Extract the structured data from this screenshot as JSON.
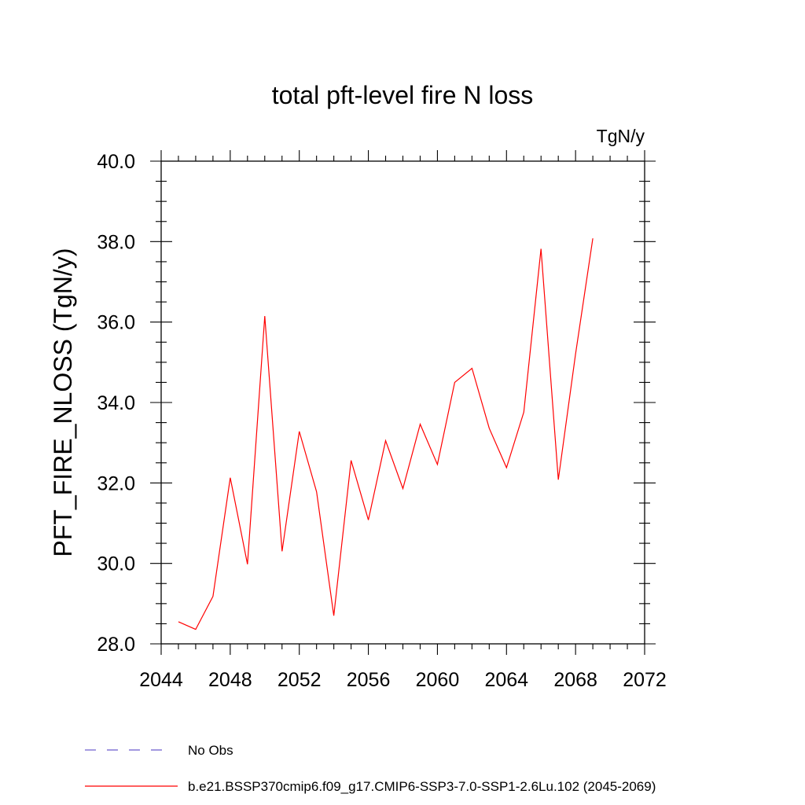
{
  "chart_data": {
    "type": "line",
    "title": "total pft-level fire N loss",
    "units_label": "TgN/y",
    "ylabel": "PFT_FIRE_NLOSS  (TgN/y)",
    "xlabel": "",
    "xlim": [
      2044,
      2072
    ],
    "ylim": [
      28.0,
      40.0
    ],
    "x_ticks": [
      2044,
      2048,
      2052,
      2056,
      2060,
      2064,
      2068,
      2072
    ],
    "x_tick_labels": [
      "2044",
      "2048",
      "2052",
      "2056",
      "2060",
      "2064",
      "2068",
      "2072"
    ],
    "y_ticks": [
      28.0,
      30.0,
      32.0,
      34.0,
      36.0,
      38.0,
      40.0
    ],
    "y_tick_labels": [
      "28.0",
      "30.0",
      "32.0",
      "34.0",
      "36.0",
      "38.0",
      "40.0"
    ],
    "grid": false,
    "series": [
      {
        "name": "b.e21.BSSP370cmip6.f09_g17.CMIP6-SSP3-7.0-SSP1-2.6Lu.102 (2045-2069)",
        "color": "#ff0000",
        "x": [
          2045,
          2046,
          2047,
          2048,
          2049,
          2050,
          2051,
          2052,
          2053,
          2054,
          2055,
          2056,
          2057,
          2058,
          2059,
          2060,
          2061,
          2062,
          2063,
          2064,
          2065,
          2066,
          2067,
          2068,
          2069
        ],
        "values": [
          28.55,
          28.36,
          29.18,
          32.13,
          29.98,
          36.15,
          30.3,
          33.28,
          31.78,
          28.7,
          32.56,
          31.08,
          33.05,
          31.86,
          33.46,
          32.46,
          34.5,
          34.85,
          33.36,
          32.38,
          33.76,
          37.82,
          32.08,
          35.2,
          38.08
        ]
      }
    ],
    "legend": {
      "placement": "bottom-left",
      "entries": [
        {
          "label": "No Obs",
          "color": "#6a5acd",
          "style": "dashed"
        },
        {
          "label": "b.e21.BSSP370cmip6.f09_g17.CMIP6-SSP3-7.0-SSP1-2.6Lu.102 (2045-2069)",
          "color": "#ff0000",
          "style": "solid"
        }
      ]
    }
  }
}
